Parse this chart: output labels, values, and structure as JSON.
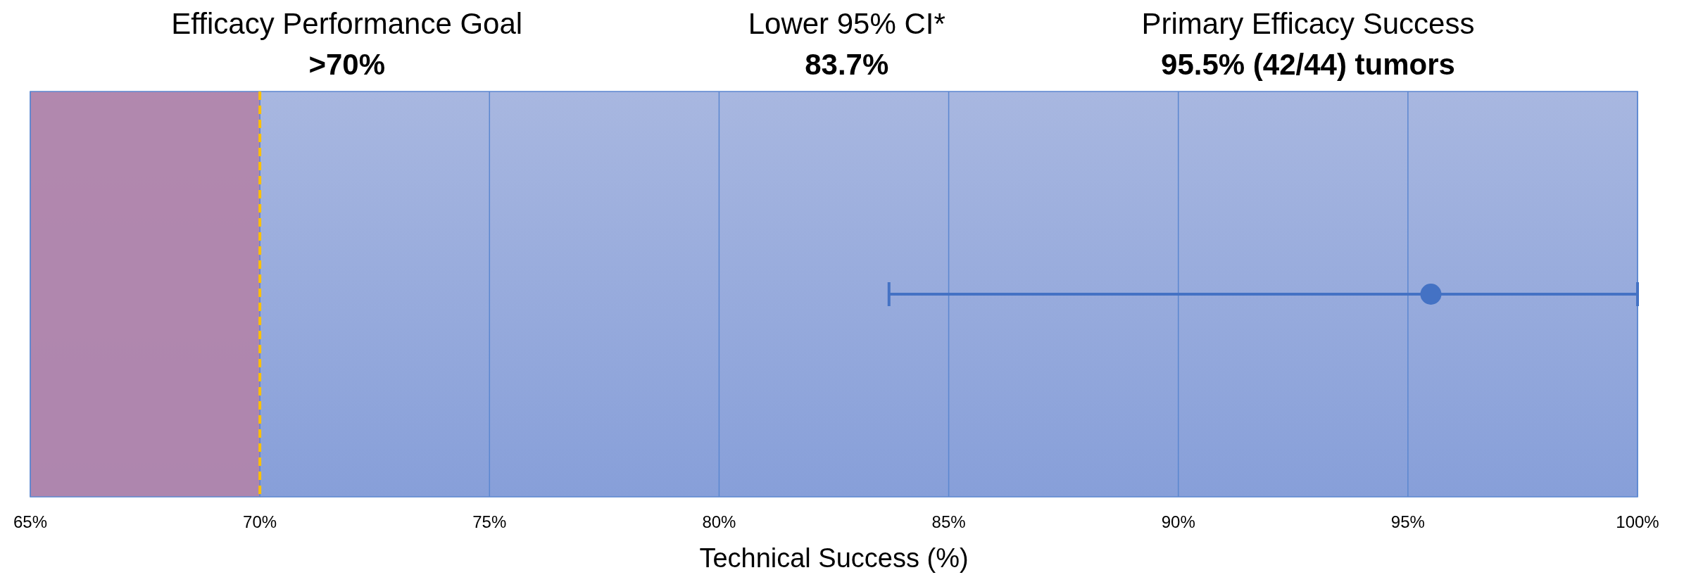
{
  "chart_data": {
    "type": "scatter",
    "orientation": "horizontal",
    "categories": [
      null
    ],
    "series": [
      {
        "color": "#4472c4",
        "values": [
          95.5
        ],
        "errors": [
          [
            83.7,
            100
          ]
        ]
      }
    ],
    "marker": "circle",
    "xlabel": "Technical Success (%)",
    "xlim": [
      65,
      100
    ],
    "xticks": [
      {
        "value": 65,
        "label": "65%"
      },
      {
        "value": 70,
        "label": "70%"
      },
      {
        "value": 75,
        "label": "75%"
      },
      {
        "value": 80,
        "label": "80%"
      },
      {
        "value": 85,
        "label": "85%"
      },
      {
        "value": 90,
        "label": "90%"
      },
      {
        "value": 95,
        "label": "95%"
      },
      {
        "value": 100,
        "label": "100%"
      }
    ],
    "grid": "x",
    "bands": [
      {
        "axis": "x",
        "from": 65,
        "to": 70,
        "color": "#b283a8"
      }
    ],
    "ref_lines": [
      {
        "axis": "x",
        "value": 70,
        "color": "#ffc000",
        "line_style": "dashed"
      }
    ],
    "annotations": [
      "Efficacy Performance Goal",
      ">70%",
      "Lower 95% CI*",
      "83.7%",
      "Primary Efficacy Success",
      "95.5% (42/44) tumors"
    ]
  }
}
